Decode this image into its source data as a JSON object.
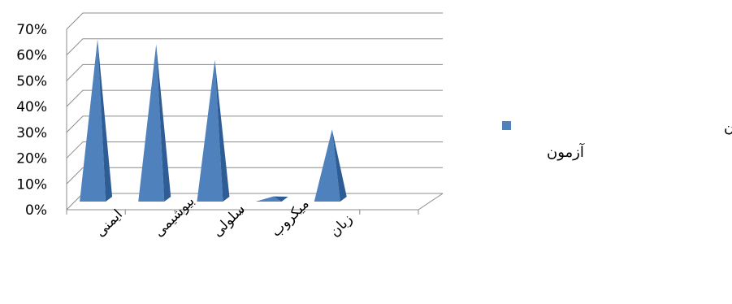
{
  "chart_data": {
    "type": "bar",
    "bar_shape": "3d-pyramid",
    "categories": [
      "ایمنی",
      "بیوشیمی",
      "سلولی",
      "میکروب",
      "زبان",
      ""
    ],
    "series": [
      {
        "name": "سطح دروس شما در این آزمون",
        "values": [
          0.63,
          0.61,
          0.55,
          0.02,
          0.28,
          0
        ]
      }
    ],
    "y_tick_labels": [
      "0%",
      "10%",
      "20%",
      "30%",
      "40%",
      "50%",
      "60%",
      "70%"
    ],
    "ylim": [
      0,
      0.7
    ],
    "y_format": "percent",
    "grid": true,
    "legend_position": "right",
    "legend_lines": [
      "سطح دروس شما در این",
      "آزمون"
    ],
    "colors": {
      "bar_front": "#4F81BD",
      "bar_side": "#2E5C94",
      "grid": "#8C8C8C",
      "axis": "#8C8C8C"
    }
  }
}
